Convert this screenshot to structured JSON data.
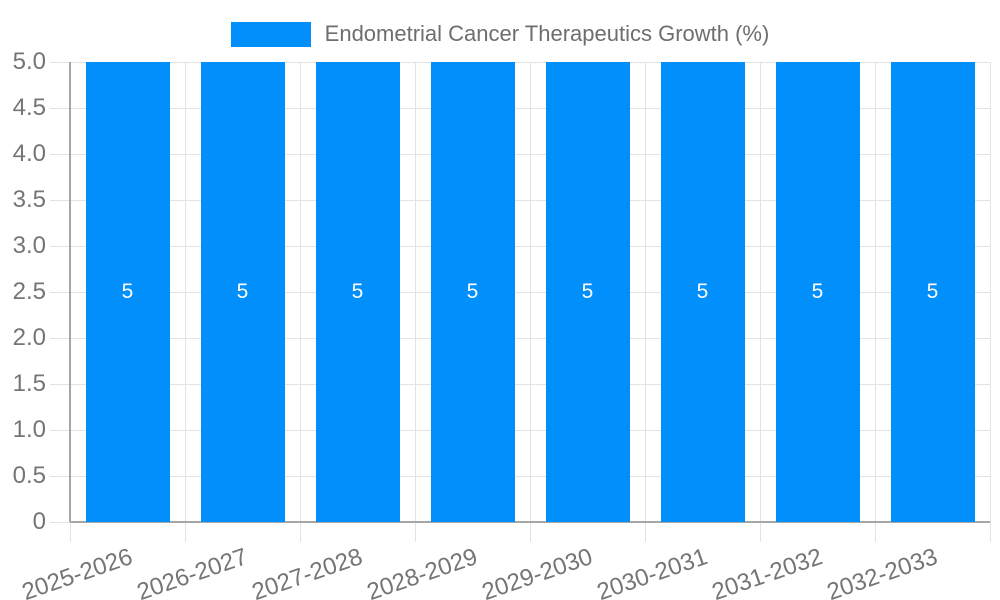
{
  "chart_data": {
    "type": "bar",
    "title": "",
    "legend_position": "top",
    "grid": true,
    "categories": [
      "2025-2026",
      "2026-2027",
      "2027-2028",
      "2028-2029",
      "2029-2030",
      "2030-2031",
      "2031-2032",
      "2032-2033"
    ],
    "series": [
      {
        "name": "Endometrial Cancer Therapeutics Growth (%)",
        "values": [
          5,
          5,
          5,
          5,
          5,
          5,
          5,
          5
        ]
      }
    ],
    "bar_labels": [
      "5",
      "5",
      "5",
      "5",
      "5",
      "5",
      "5",
      "5"
    ],
    "xlabel": "",
    "ylabel": "",
    "ylim": [
      0,
      5
    ],
    "ytick_step": 0.5,
    "ytick_labels": [
      "0",
      "0.5",
      "1.0",
      "1.5",
      "2.0",
      "2.5",
      "3.0",
      "3.5",
      "4.0",
      "4.5",
      "5.0"
    ],
    "colors": {
      "bar": "#008FFB",
      "grid": "#e3e3e3",
      "axis": "#a7a7a7",
      "tick_label": "#757575",
      "legend_text": "#6e6e6e",
      "bar_label": "#ffffff",
      "background": "#ffffff"
    }
  }
}
